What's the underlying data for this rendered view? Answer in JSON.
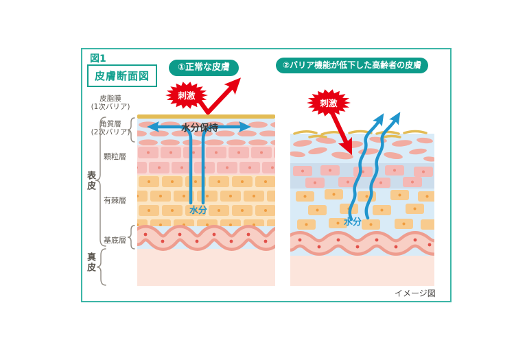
{
  "figure": {
    "fig_label": "図1",
    "title": "皮膚断面図",
    "footnote": "イメージ図"
  },
  "panels": {
    "left": {
      "header": "①正常な皮膚",
      "stimulus": "刺激",
      "moisture_retention": "水分保持",
      "moisture": "水分"
    },
    "right": {
      "header": "②バリア機能が低下した高齢者の皮膚",
      "stimulus": "刺激",
      "moisture": "水分"
    }
  },
  "layer_labels": {
    "sebum": "皮脂膜",
    "sebum_sub": "(1次バリア)",
    "corneum": "角質層",
    "corneum_sub": "(2次バリア)",
    "granular": "顆粒層",
    "spinous": "有棘層",
    "basal": "基底層",
    "epidermis": "表皮",
    "dermis": "真皮"
  },
  "colors": {
    "accent_teal": "#12a08e",
    "pill_teal": "#0d9b8a",
    "stimulus_red": "#e60012",
    "arrow_blue": "#2095cc",
    "sebum_gold": "#e3bc55",
    "corneum_bg": "#daecf8",
    "corneum_cell": "#f2aea4",
    "granular_bg": "#fad9d6",
    "granular_brick": "#f5bcb9",
    "spinous_bg": "#fbe5c4",
    "spinous_brick": "#f8ca8c",
    "basal_outline": "#ee9d8f",
    "basal_cell": "#f8cfc5",
    "dermis_bg": "#fce5dc",
    "aged_granular_bg": "#ccddec"
  }
}
